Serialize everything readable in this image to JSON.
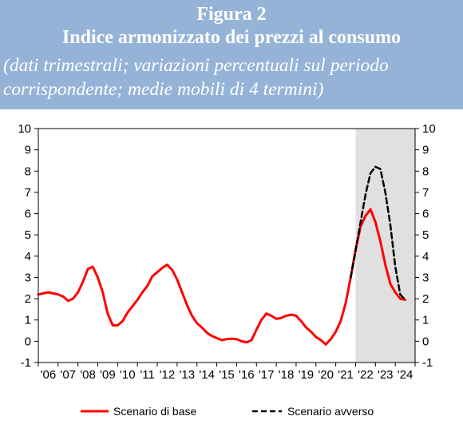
{
  "header": {
    "figure_label": "Figura 2",
    "title": "Indice armonizzato dei prezzi al consumo",
    "subtitle_line1": "(dati trimestrali; variazioni percentuali sul periodo",
    "subtitle_line2": "corrispondente; medie mobili di 4 termini)"
  },
  "colors": {
    "header_bg": "#95b3d7",
    "header_text": "#ffffff",
    "base": "#ff0000",
    "adverse": "#000000",
    "forecast_shade": "#e0e0e0"
  },
  "chart_data": {
    "type": "line",
    "title": "Indice armonizzato dei prezzi al consumo",
    "xlabel": "",
    "ylabel": "",
    "ylim": [
      -1,
      10
    ],
    "yticks": [
      -1,
      0,
      1,
      2,
      3,
      4,
      5,
      6,
      7,
      8,
      9,
      10
    ],
    "xlim": [
      2006.0,
      2025.0
    ],
    "x_tick_labels": [
      "'06",
      "'07",
      "'08",
      "'09",
      "'10",
      "'11",
      "'12",
      "'13",
      "'14",
      "'15",
      "'16",
      "'17",
      "'18",
      "'19",
      "'20",
      "'21",
      "'22",
      "'23",
      "'24"
    ],
    "x_tick_years": [
      2006,
      2007,
      2008,
      2009,
      2010,
      2011,
      2012,
      2013,
      2014,
      2015,
      2016,
      2017,
      2018,
      2019,
      2020,
      2021,
      2022,
      2023,
      2024
    ],
    "shaded_region": [
      2022.0,
      2025.0
    ],
    "grid": false,
    "secondary_y_axis": true,
    "legend_position": "bottom",
    "series": [
      {
        "name": "Scenario di base",
        "style": "solid",
        "color": "#ff0000",
        "x": [
          2006.0,
          2006.25,
          2006.5,
          2006.75,
          2007.0,
          2007.25,
          2007.5,
          2007.75,
          2008.0,
          2008.25,
          2008.5,
          2008.75,
          2009.0,
          2009.25,
          2009.5,
          2009.75,
          2010.0,
          2010.25,
          2010.5,
          2010.75,
          2011.0,
          2011.25,
          2011.5,
          2011.75,
          2012.0,
          2012.25,
          2012.5,
          2012.75,
          2013.0,
          2013.25,
          2013.5,
          2013.75,
          2014.0,
          2014.25,
          2014.5,
          2014.75,
          2015.0,
          2015.25,
          2015.5,
          2015.75,
          2016.0,
          2016.25,
          2016.5,
          2016.75,
          2017.0,
          2017.25,
          2017.5,
          2017.75,
          2018.0,
          2018.25,
          2018.5,
          2018.75,
          2019.0,
          2019.25,
          2019.5,
          2019.75,
          2020.0,
          2020.25,
          2020.5,
          2020.75,
          2021.0,
          2021.25,
          2021.5,
          2021.75,
          2022.0,
          2022.25,
          2022.5,
          2022.75,
          2023.0,
          2023.25,
          2023.5,
          2023.75,
          2024.0,
          2024.25,
          2024.5
        ],
        "y": [
          2.2,
          2.25,
          2.3,
          2.25,
          2.2,
          2.1,
          1.9,
          2.0,
          2.3,
          2.8,
          3.4,
          3.5,
          3.0,
          2.3,
          1.3,
          0.75,
          0.75,
          0.95,
          1.35,
          1.65,
          1.95,
          2.3,
          2.6,
          3.05,
          3.25,
          3.45,
          3.6,
          3.35,
          2.9,
          2.3,
          1.7,
          1.2,
          0.85,
          0.65,
          0.4,
          0.25,
          0.15,
          0.05,
          0.1,
          0.12,
          0.1,
          0.0,
          -0.05,
          0.05,
          0.55,
          1.0,
          1.3,
          1.2,
          1.05,
          1.1,
          1.2,
          1.25,
          1.2,
          0.95,
          0.65,
          0.45,
          0.2,
          0.05,
          -0.15,
          0.1,
          0.45,
          0.95,
          1.8,
          3.0,
          4.3,
          5.4,
          5.9,
          6.2,
          5.6,
          4.7,
          3.6,
          2.7,
          2.3,
          2.0,
          1.95
        ]
      },
      {
        "name": "Scenario avverso",
        "style": "dashed",
        "color": "#000000",
        "x": [
          2021.75,
          2022.0,
          2022.25,
          2022.5,
          2022.75,
          2023.0,
          2023.25,
          2023.5,
          2023.75,
          2024.0,
          2024.25,
          2024.5
        ],
        "y": [
          3.0,
          4.3,
          5.6,
          6.9,
          7.9,
          8.2,
          8.1,
          7.0,
          5.5,
          3.5,
          2.2,
          1.95
        ]
      }
    ]
  }
}
